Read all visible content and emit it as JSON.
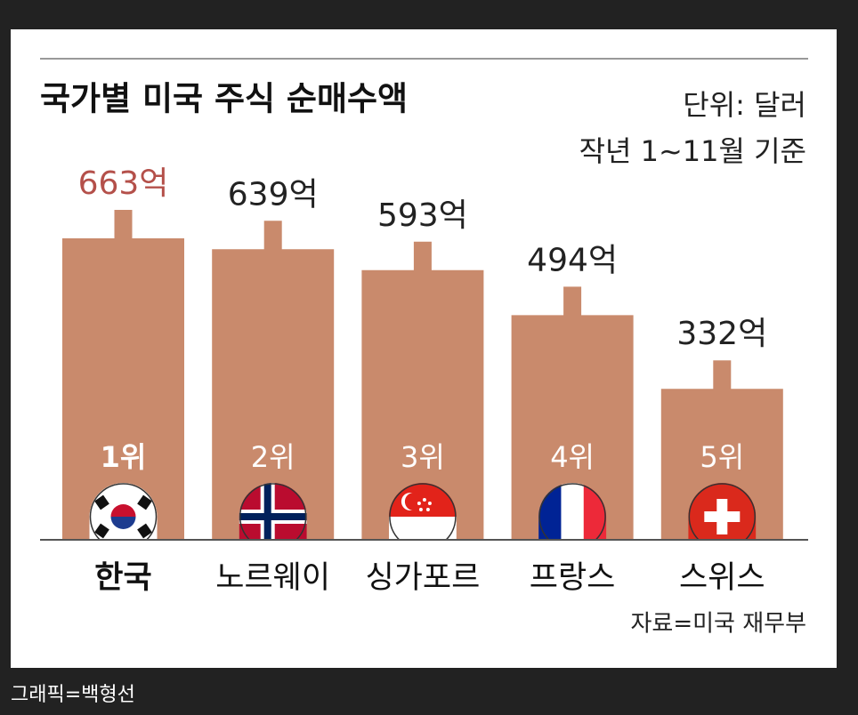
{
  "chart_data": {
    "type": "bar",
    "title": "국가별 미국 주식 순매수액",
    "unit_note": "단위: 달러",
    "period_note": "작년 1~11월 기준",
    "categories": [
      "한국",
      "노르웨이",
      "싱가포르",
      "프랑스",
      "스위스"
    ],
    "values": [
      663,
      639,
      593,
      494,
      332
    ],
    "value_labels": [
      "663억",
      "639억",
      "593억",
      "494억",
      "332억"
    ],
    "rank_labels": [
      "1위",
      "2위",
      "3위",
      "4위",
      "5위"
    ],
    "color": "#c98a6c",
    "highlight_color": "#b4504a",
    "source": "자료=미국 재무부",
    "credit": "그래픽=백형선"
  }
}
